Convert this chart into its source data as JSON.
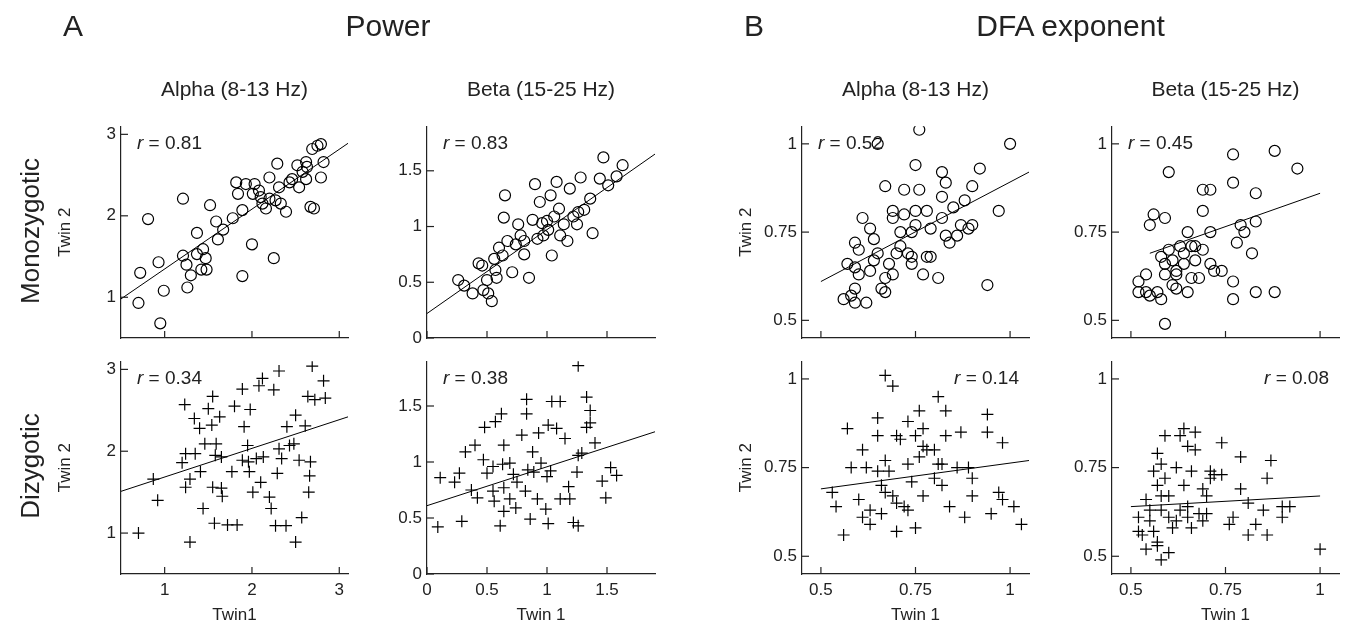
{
  "chart_data": [
    {
      "type": "scatter",
      "title": "Alpha (8-13 Hz)",
      "ylabel": "Twin 2",
      "xlim": [
        0.5,
        3.1
      ],
      "ylim": [
        0.5,
        3.1
      ],
      "xticks": [
        1,
        2,
        3
      ],
      "yticks": [
        1,
        2,
        3
      ],
      "tick_labels": "y",
      "annotations": [
        "r = 0.81",
        "A",
        "Power",
        "Monozygotic"
      ],
      "series": [
        {
          "type": "scatter",
          "marker": "circle",
          "color": "#000000",
          "x": [
            0.7,
            0.72,
            0.81,
            0.93,
            0.99,
            0.95,
            1.21,
            1.26,
            1.21,
            1.25,
            1.3,
            1.37,
            1.37,
            1.42,
            1.44,
            1.47,
            1.48,
            1.52,
            1.59,
            1.61,
            1.67,
            1.78,
            1.89,
            1.89,
            1.82,
            1.84,
            1.93,
            2.0,
            2.01,
            2.03,
            2.1,
            2.12,
            2.16,
            2.2,
            2.25,
            2.27,
            2.29,
            2.31,
            2.33,
            2.39,
            2.43,
            2.46,
            2.52,
            2.54,
            2.58,
            2.62,
            2.63,
            2.62,
            2.67,
            2.71,
            2.69,
            2.75,
            2.79,
            2.79,
            2.82,
            2.2,
            2.08
          ],
          "values": [
            0.93,
            1.3,
            1.96,
            1.43,
            1.08,
            0.68,
            2.21,
            1.12,
            1.51,
            1.4,
            1.27,
            1.79,
            1.53,
            1.34,
            1.59,
            1.48,
            1.34,
            2.13,
            1.93,
            1.71,
            1.83,
            1.97,
            1.26,
            2.07,
            2.41,
            2.27,
            2.39,
            1.65,
            2.27,
            2.39,
            2.23,
            2.15,
            2.09,
            2.47,
            1.48,
            2.19,
            2.64,
            2.35,
            2.15,
            2.05,
            2.41,
            2.45,
            2.62,
            2.35,
            2.54,
            2.66,
            2.6,
            2.45,
            2.11,
            2.09,
            2.82,
            2.86,
            2.88,
            2.47,
            2.66,
            2.21,
            2.31
          ]
        },
        {
          "type": "line",
          "marker": "none",
          "color": "#000000",
          "x": [
            0.5,
            3.1
          ],
          "values": [
            0.98,
            2.89
          ]
        }
      ]
    },
    {
      "type": "scatter",
      "title": "Beta (15-25 Hz)",
      "xlim": [
        0,
        1.9
      ],
      "ylim": [
        0,
        1.9
      ],
      "xticks": [
        0,
        0.5,
        1,
        1.5
      ],
      "yticks": [
        0,
        0.5,
        1,
        1.5
      ],
      "tick_labels": "y",
      "annotations": [
        "r = 0.83"
      ],
      "series": [
        {
          "type": "scatter",
          "marker": "circle",
          "color": "#000000",
          "x": [
            0.26,
            0.31,
            0.38,
            0.43,
            0.46,
            0.47,
            0.5,
            0.51,
            0.54,
            0.56,
            0.57,
            0.58,
            0.6,
            0.63,
            0.65,
            0.64,
            0.67,
            0.71,
            0.74,
            0.76,
            0.78,
            0.81,
            0.81,
            0.85,
            0.88,
            0.9,
            0.92,
            0.94,
            0.96,
            0.97,
            1.0,
            1.01,
            1.03,
            1.04,
            1.06,
            1.08,
            1.1,
            1.11,
            1.14,
            1.17,
            1.19,
            1.22,
            1.25,
            1.26,
            1.28,
            1.31,
            1.36,
            1.38,
            1.44,
            1.47,
            1.51,
            1.58,
            1.63
          ],
          "values": [
            0.52,
            0.47,
            0.4,
            0.67,
            0.65,
            0.43,
            0.52,
            0.4,
            0.33,
            0.71,
            0.61,
            0.54,
            0.81,
            0.74,
            1.28,
            1.08,
            0.87,
            0.59,
            0.84,
            1.02,
            0.92,
            0.75,
            0.87,
            0.54,
            1.06,
            1.38,
            0.89,
            1.22,
            1.03,
            0.92,
            1.05,
            0.97,
            1.28,
            0.74,
            1.09,
            1.4,
            1.16,
            0.92,
            1.02,
            0.87,
            1.34,
            1.09,
            1.02,
            1.13,
            1.44,
            1.15,
            1.25,
            0.94,
            1.43,
            1.62,
            1.37,
            1.45,
            1.55
          ]
        },
        {
          "type": "line",
          "marker": "none",
          "color": "#000000",
          "x": [
            0,
            1.9
          ],
          "values": [
            0.22,
            1.65
          ]
        }
      ]
    },
    {
      "type": "scatter",
      "title": "Alpha (8-13 Hz)",
      "ylabel": "Twin 2",
      "xlim": [
        0.45,
        1.05
      ],
      "ylim": [
        0.45,
        1.05
      ],
      "xticks": [
        0.5,
        0.75,
        1
      ],
      "yticks": [
        0.5,
        0.75,
        1
      ],
      "tick_labels": "y",
      "annotations": [
        "r = 0.52",
        "B",
        "DFA exponent"
      ],
      "series": [
        {
          "type": "scatter",
          "marker": "circle",
          "color": "#000000",
          "x": [
            0.56,
            0.58,
            0.59,
            0.59,
            0.62,
            0.57,
            0.59,
            0.59,
            0.6,
            0.6,
            0.61,
            0.63,
            0.63,
            0.64,
            0.64,
            0.65,
            0.65,
            0.66,
            0.67,
            0.67,
            0.67,
            0.68,
            0.69,
            0.69,
            0.69,
            0.7,
            0.71,
            0.71,
            0.72,
            0.73,
            0.72,
            0.74,
            0.74,
            0.74,
            0.75,
            0.75,
            0.75,
            0.76,
            0.76,
            0.77,
            0.78,
            0.78,
            0.79,
            0.79,
            0.82,
            0.82,
            0.83,
            0.82,
            0.81,
            0.83,
            0.84,
            0.85,
            0.86,
            0.87,
            0.88,
            0.89,
            0.9,
            0.9,
            0.92,
            0.94,
            0.97,
            1.0
          ],
          "values": [
            0.56,
            0.57,
            0.55,
            0.59,
            0.55,
            0.66,
            0.65,
            0.72,
            0.7,
            0.63,
            0.79,
            0.64,
            0.76,
            0.73,
            0.67,
            1.0,
            0.69,
            0.59,
            0.62,
            0.58,
            0.88,
            0.66,
            0.81,
            0.79,
            0.63,
            0.69,
            0.71,
            0.75,
            0.8,
            0.69,
            0.87,
            0.75,
            0.66,
            0.68,
            0.81,
            0.77,
            0.94,
            0.87,
            1.04,
            0.63,
            0.81,
            0.68,
            0.68,
            0.76,
            0.79,
            0.92,
            0.89,
            0.85,
            0.62,
            0.74,
            0.72,
            0.82,
            0.74,
            0.77,
            0.84,
            0.76,
            0.88,
            0.77,
            0.93,
            0.6,
            0.81,
            1.0
          ]
        },
        {
          "type": "line",
          "marker": "none",
          "color": "#000000",
          "x": [
            0.5,
            1.05
          ],
          "values": [
            0.61,
            0.92
          ]
        }
      ]
    },
    {
      "type": "scatter",
      "title": "Beta (15-25 Hz)",
      "xlim": [
        0.45,
        1.05
      ],
      "ylim": [
        0.45,
        1.05
      ],
      "xticks": [
        0.5,
        0.75,
        1
      ],
      "yticks": [
        0.5,
        0.75,
        1
      ],
      "tick_labels": "y",
      "annotations": [
        "r = 0.45"
      ],
      "series": [
        {
          "type": "scatter",
          "marker": "circle",
          "color": "#000000",
          "x": [
            0.52,
            0.52,
            0.54,
            0.55,
            0.54,
            0.55,
            0.56,
            0.57,
            0.58,
            0.58,
            0.59,
            0.59,
            0.59,
            0.59,
            0.6,
            0.6,
            0.61,
            0.61,
            0.62,
            0.62,
            0.62,
            0.63,
            0.64,
            0.64,
            0.65,
            0.65,
            0.66,
            0.66,
            0.67,
            0.67,
            0.68,
            0.69,
            0.69,
            0.69,
            0.71,
            0.71,
            0.71,
            0.72,
            0.74,
            0.77,
            0.77,
            0.77,
            0.77,
            0.78,
            0.79,
            0.8,
            0.82,
            0.83,
            0.83,
            0.83,
            0.88,
            0.88,
            0.94
          ],
          "values": [
            0.58,
            0.61,
            0.58,
            0.77,
            0.63,
            0.57,
            0.8,
            0.58,
            0.68,
            0.56,
            0.49,
            0.79,
            0.63,
            0.66,
            0.7,
            0.92,
            0.6,
            0.67,
            0.59,
            0.63,
            0.64,
            0.71,
            0.66,
            0.69,
            0.75,
            0.58,
            0.62,
            0.71,
            0.67,
            0.71,
            0.62,
            0.87,
            0.81,
            0.7,
            0.87,
            0.66,
            0.75,
            0.64,
            0.64,
            0.89,
            0.97,
            0.61,
            0.56,
            0.72,
            0.77,
            0.75,
            0.69,
            0.58,
            0.86,
            0.78,
            0.58,
            0.98,
            0.93
          ]
        },
        {
          "type": "line",
          "marker": "none",
          "color": "#000000",
          "x": [
            0.55,
            1.0
          ],
          "values": [
            0.69,
            0.86
          ]
        }
      ]
    },
    {
      "type": "scatter",
      "xlabel": "Twin1",
      "ylabel": "Twin 2",
      "xlim": [
        0.5,
        3.1
      ],
      "ylim": [
        0.5,
        3.1
      ],
      "xticks": [
        1,
        2,
        3
      ],
      "yticks": [
        1,
        2,
        3
      ],
      "annotations": [
        "r = 0.34",
        "Dizygotic"
      ],
      "series": [
        {
          "type": "scatter",
          "marker": "cross",
          "color": "#000000",
          "x": [
            0.7,
            0.87,
            0.92,
            1.29,
            1.23,
            1.34,
            1.35,
            1.24,
            1.2,
            1.24,
            1.29,
            1.41,
            1.44,
            1.46,
            1.5,
            1.54,
            1.55,
            1.55,
            1.57,
            1.58,
            1.59,
            1.63,
            1.65,
            1.66,
            1.65,
            1.72,
            1.77,
            1.83,
            1.8,
            1.89,
            1.91,
            1.95,
            1.89,
            1.97,
            1.98,
            1.96,
            2.01,
            2.05,
            2.08,
            2.1,
            2.13,
            2.2,
            2.22,
            2.25,
            2.27,
            2.29,
            2.31,
            2.31,
            2.34,
            2.39,
            2.4,
            2.43,
            2.48,
            2.5,
            2.5,
            2.54,
            2.57,
            2.61,
            2.64,
            2.66,
            2.65,
            2.67,
            2.69,
            2.72,
            2.84,
            2.82,
            2.12,
            1.4
          ],
          "values": [
            1.0,
            1.66,
            1.4,
            0.89,
            2.57,
            2.4,
            1.97,
            1.97,
            1.86,
            1.56,
            1.66,
            1.75,
            1.3,
            2.09,
            2.52,
            2.32,
            2.67,
            1.56,
            1.12,
            1.95,
            2.09,
            2.42,
            1.55,
            1.45,
            1.93,
            1.1,
            1.75,
            1.1,
            2.55,
            2.76,
            2.3,
            2.07,
            1.89,
            1.75,
            2.51,
            1.87,
            1.5,
            1.91,
            2.8,
            1.62,
            1.93,
            1.44,
            1.3,
            2.75,
            1.09,
            1.73,
            2.03,
            2.98,
            1.91,
            1.09,
            2.3,
            2.07,
            2.09,
            2.44,
            0.89,
            1.89,
            1.19,
            2.31,
            2.67,
            1.7,
            1.5,
            1.87,
            3.04,
            2.63,
            2.65,
            2.86,
            2.89,
            2.28
          ]
        },
        {
          "type": "line",
          "marker": "none",
          "color": "#000000",
          "x": [
            0.5,
            3.1
          ],
          "values": [
            1.51,
            2.42
          ]
        }
      ]
    },
    {
      "type": "scatter",
      "xlabel": "Twin 1",
      "xlim": [
        0,
        1.9
      ],
      "ylim": [
        0,
        1.9
      ],
      "xticks": [
        0,
        0.5,
        1,
        1.5
      ],
      "yticks": [
        0,
        0.5,
        1,
        1.5
      ],
      "annotations": [
        "r = 0.38"
      ],
      "series": [
        {
          "type": "scatter",
          "marker": "cross",
          "color": "#000000",
          "x": [
            0.09,
            0.11,
            0.23,
            0.27,
            0.29,
            0.32,
            0.4,
            0.37,
            0.42,
            0.47,
            0.48,
            0.5,
            0.55,
            0.55,
            0.56,
            0.57,
            0.62,
            0.61,
            0.63,
            0.64,
            0.64,
            0.64,
            0.69,
            0.69,
            0.72,
            0.74,
            0.75,
            0.79,
            0.82,
            0.83,
            0.83,
            0.84,
            0.86,
            0.88,
            0.89,
            0.92,
            0.93,
            0.95,
            0.99,
            1.0,
            1.01,
            1.01,
            1.03,
            1.04,
            1.08,
            1.11,
            1.11,
            1.15,
            1.18,
            1.19,
            1.22,
            1.25,
            1.26,
            1.26,
            1.26,
            1.29,
            1.33,
            1.33,
            1.36,
            1.36,
            1.4,
            1.46,
            1.49,
            1.53,
            1.58
          ],
          "values": [
            0.42,
            0.86,
            0.82,
            0.9,
            0.47,
            1.09,
            1.15,
            0.75,
            0.68,
            1.02,
            1.31,
            0.9,
            0.96,
            0.74,
            0.65,
            1.36,
            1.43,
            0.43,
            0.98,
            1.15,
            0.77,
            0.56,
            0.99,
            0.67,
            0.89,
            0.59,
            0.82,
            1.24,
            0.74,
            1.56,
            1.43,
            0.93,
            0.49,
            1.09,
            0.91,
            0.67,
            1.26,
            0.99,
            0.58,
            0.87,
            0.45,
            1.33,
            0.92,
            1.54,
            1.3,
            1.54,
            0.67,
            1.21,
            0.78,
            0.67,
            0.46,
            0.91,
            0.43,
            1.06,
            1.86,
            1.08,
            1.31,
            1.58,
            1.46,
            1.35,
            1.17,
            0.83,
            0.68,
            0.95,
            0.88
          ]
        },
        {
          "type": "line",
          "marker": "none",
          "color": "#000000",
          "x": [
            0,
            1.9
          ],
          "values": [
            0.61,
            1.27
          ]
        }
      ]
    },
    {
      "type": "scatter",
      "xlabel": "Twin 1",
      "ylabel": "Twin 2",
      "xlim": [
        0.45,
        1.05
      ],
      "ylim": [
        0.45,
        1.05
      ],
      "xticks": [
        0.5,
        0.75,
        1
      ],
      "yticks": [
        0.5,
        0.75,
        1
      ],
      "annotations": [
        "r = 0.14"
      ],
      "series": [
        {
          "type": "scatter",
          "marker": "cross",
          "color": "#000000",
          "x": [
            0.53,
            0.54,
            0.56,
            0.57,
            0.58,
            0.6,
            0.61,
            0.61,
            0.62,
            0.63,
            0.63,
            0.65,
            0.65,
            0.65,
            0.66,
            0.66,
            0.67,
            0.67,
            0.67,
            0.68,
            0.69,
            0.69,
            0.7,
            0.7,
            0.7,
            0.71,
            0.72,
            0.73,
            0.73,
            0.73,
            0.74,
            0.75,
            0.75,
            0.76,
            0.76,
            0.77,
            0.77,
            0.77,
            0.78,
            0.8,
            0.8,
            0.81,
            0.81,
            0.82,
            0.82,
            0.83,
            0.83,
            0.84,
            0.87,
            0.86,
            0.88,
            0.89,
            0.9,
            0.9,
            0.94,
            0.94,
            0.95,
            0.97,
            0.98,
            0.98,
            1.01,
            1.03
          ],
          "values": [
            0.68,
            0.64,
            0.56,
            0.86,
            0.75,
            0.66,
            0.61,
            0.8,
            0.75,
            0.59,
            0.63,
            0.89,
            0.84,
            0.74,
            0.7,
            0.62,
            1.01,
            0.77,
            0.68,
            0.74,
            0.67,
            0.98,
            0.84,
            0.57,
            0.65,
            0.83,
            0.64,
            0.76,
            0.88,
            0.63,
            0.71,
            0.58,
            0.84,
            0.91,
            0.78,
            0.67,
            0.81,
            0.86,
            0.8,
            0.8,
            0.72,
            0.76,
            0.95,
            0.7,
            0.76,
            0.91,
            0.84,
            0.64,
            0.85,
            0.75,
            0.61,
            0.75,
            0.72,
            0.67,
            0.9,
            0.85,
            0.62,
            0.68,
            0.82,
            0.66,
            0.64,
            0.59
          ]
        },
        {
          "type": "line",
          "marker": "none",
          "color": "#000000",
          "x": [
            0.5,
            1.05
          ],
          "values": [
            0.69,
            0.77
          ]
        }
      ]
    },
    {
      "type": "scatter",
      "xlabel": "Twin 1",
      "xlim": [
        0.45,
        1.05
      ],
      "ylim": [
        0.45,
        1.05
      ],
      "xticks": [
        0.5,
        0.75,
        1
      ],
      "yticks": [
        0.5,
        0.75,
        1
      ],
      "annotations": [
        "r = 0.08"
      ],
      "series": [
        {
          "type": "scatter",
          "marker": "cross",
          "color": "#000000",
          "x": [
            0.52,
            0.52,
            0.53,
            0.54,
            0.54,
            0.55,
            0.55,
            0.56,
            0.56,
            0.57,
            0.57,
            0.57,
            0.57,
            0.58,
            0.58,
            0.58,
            0.58,
            0.59,
            0.59,
            0.6,
            0.6,
            0.6,
            0.61,
            0.62,
            0.62,
            0.63,
            0.63,
            0.64,
            0.64,
            0.65,
            0.65,
            0.65,
            0.66,
            0.66,
            0.67,
            0.67,
            0.68,
            0.69,
            0.69,
            0.7,
            0.7,
            0.71,
            0.71,
            0.72,
            0.74,
            0.74,
            0.76,
            0.77,
            0.79,
            0.79,
            0.81,
            0.81,
            0.83,
            0.85,
            0.86,
            0.86,
            0.87,
            0.9,
            0.9,
            0.92,
            1.0
          ],
          "values": [
            0.61,
            0.57,
            0.56,
            0.52,
            0.66,
            0.6,
            0.63,
            0.57,
            0.74,
            0.54,
            0.79,
            0.53,
            0.7,
            0.67,
            0.76,
            0.49,
            0.63,
            0.72,
            0.84,
            0.51,
            0.67,
            0.61,
            0.58,
            0.6,
            0.75,
            0.84,
            0.63,
            0.86,
            0.7,
            0.81,
            0.61,
            0.64,
            0.74,
            0.58,
            0.85,
            0.8,
            0.62,
            0.69,
            0.6,
            0.67,
            0.62,
            0.74,
            0.72,
            0.73,
            0.82,
            0.73,
            0.59,
            0.61,
            0.78,
            0.69,
            0.65,
            0.56,
            0.59,
            0.63,
            0.56,
            0.72,
            0.77,
            0.61,
            0.64,
            0.64,
            0.52
          ]
        },
        {
          "type": "line",
          "marker": "none",
          "color": "#000000",
          "x": [
            0.5,
            1.0
          ],
          "values": [
            0.64,
            0.67
          ]
        }
      ]
    }
  ]
}
